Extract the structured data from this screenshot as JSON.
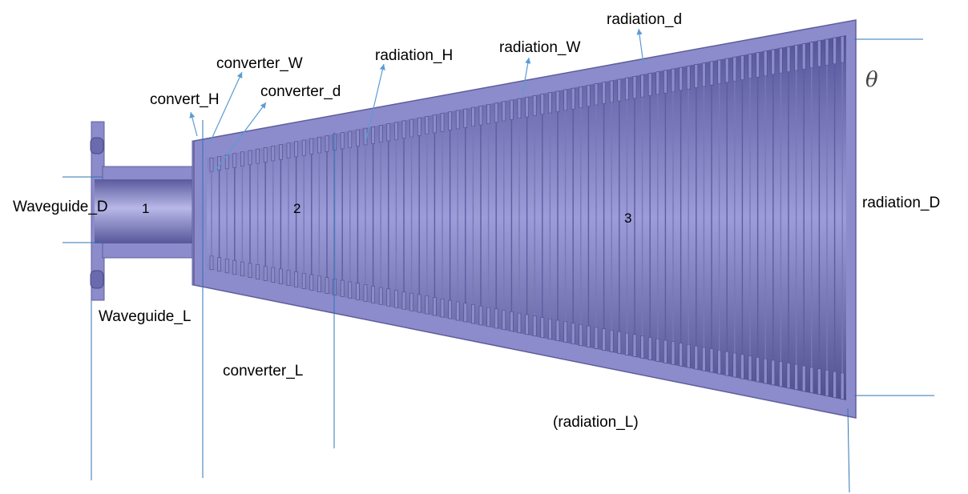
{
  "labels": {
    "waveguide_d": "Waveguide_D",
    "waveguide_l": "Waveguide_L",
    "convert_h": "convert_H",
    "converter_w": "converter_W",
    "converter_d": "converter_d",
    "converter_l": "converter_L",
    "radiation_h": "radiation_H",
    "radiation_w": "radiation_W",
    "radiation_d": "radiation_d",
    "radiation_D": "radiation_D",
    "radiation_l": "(radiation_L)",
    "theta": "θ"
  },
  "sections": {
    "s1": "1",
    "s2": "2",
    "s3": "3"
  },
  "colors": {
    "body": "#8c8ccc",
    "body_edge": "#5e5e9c",
    "inner": "#6a6aae",
    "highlight": "#b4b4e4",
    "shadow": "#4a4a86",
    "dimension_line": "#2e75b6",
    "arrow": "#5b9bd5"
  }
}
